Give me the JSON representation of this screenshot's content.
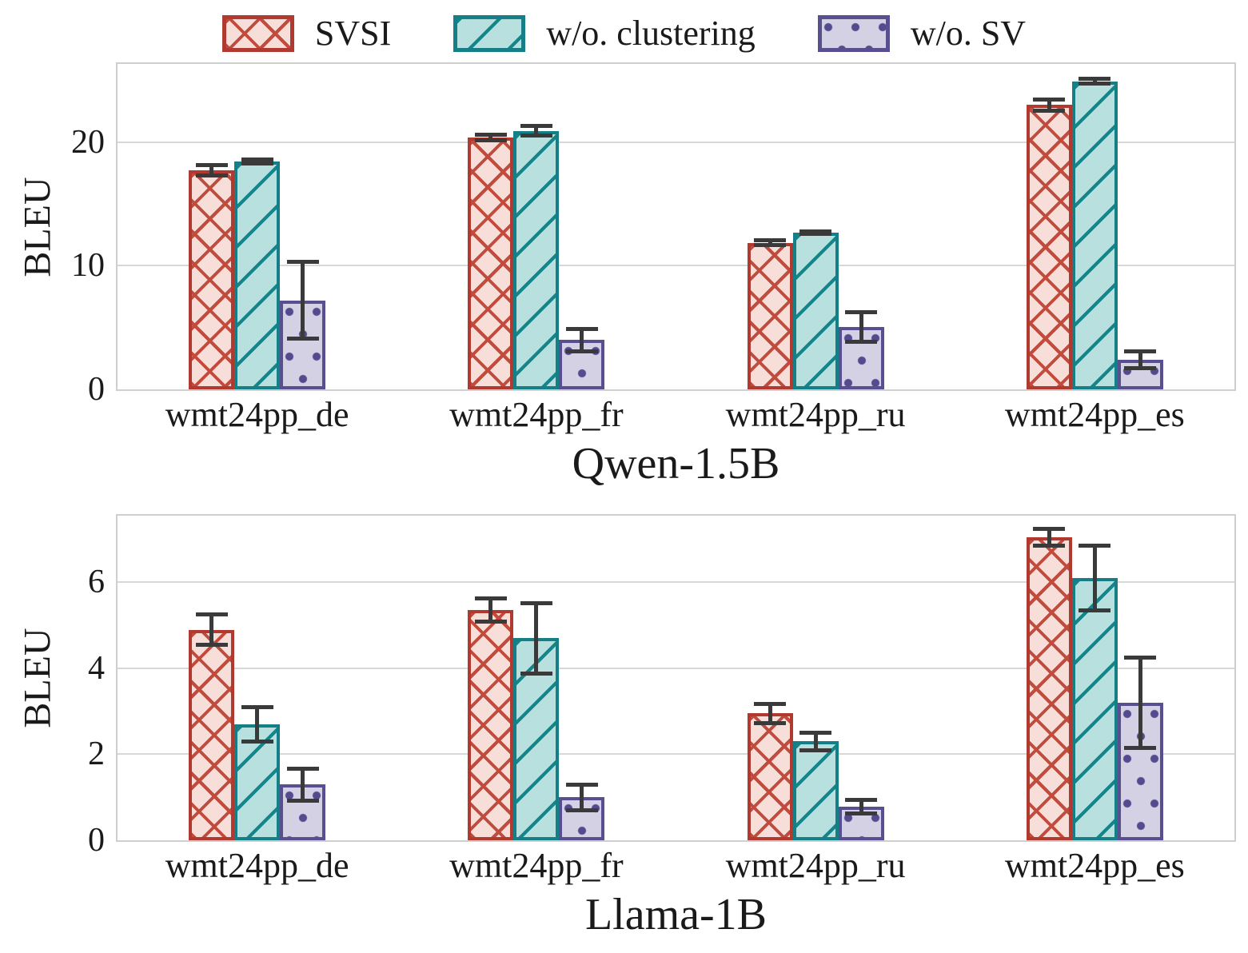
{
  "legend": {
    "items": [
      {
        "key": "svsi",
        "label": "SVSI"
      },
      {
        "key": "clustering",
        "label": "w/o. clustering"
      },
      {
        "key": "sv",
        "label": "w/o. SV"
      }
    ]
  },
  "colors": {
    "svsi": {
      "edge": "#b03a30",
      "hatch_line": "#c14b3d",
      "fill": "#f7ded8",
      "hatch": "x"
    },
    "clustering": {
      "edge": "#157f88",
      "hatch_line": "#15858c",
      "fill": "#b8e0de",
      "hatch": "/"
    },
    "sv": {
      "edge": "#584f90",
      "hatch_line": "#544b8e",
      "fill": "#d4d1e4",
      "hatch": "."
    },
    "errorbar": "#3a3a3a",
    "grid": "#d8d8d8",
    "spine": "#cfcfcf",
    "text": "#1a1a1a"
  },
  "chart_data": [
    {
      "type": "bar",
      "title": "Qwen-1.5B",
      "ylabel": "BLEU",
      "categories": [
        "wmt24pp_de",
        "wmt24pp_fr",
        "wmt24pp_ru",
        "wmt24pp_es"
      ],
      "yticks": [
        0,
        10,
        20
      ],
      "ylim": [
        0,
        26.3
      ],
      "grid": true,
      "legend_position": "above-figure",
      "series": [
        {
          "name": "SVSI",
          "key": "svsi",
          "values": [
            17.7,
            20.35,
            11.85,
            23.0
          ],
          "errors": [
            0.4,
            0.25,
            0.2,
            0.45
          ]
        },
        {
          "name": "w/o. clustering",
          "key": "clustering",
          "values": [
            18.4,
            20.9,
            12.65,
            24.9
          ],
          "errors": [
            0.15,
            0.4,
            0.1,
            0.2
          ]
        },
        {
          "name": "w/o. SV",
          "key": "sv",
          "values": [
            7.2,
            4.0,
            5.05,
            2.4
          ],
          "errors": [
            3.1,
            0.9,
            1.2,
            0.7
          ]
        }
      ]
    },
    {
      "type": "bar",
      "title": "Llama-1B",
      "ylabel": "BLEU",
      "categories": [
        "wmt24pp_de",
        "wmt24pp_fr",
        "wmt24pp_ru",
        "wmt24pp_es"
      ],
      "yticks": [
        0,
        2,
        4,
        6
      ],
      "ylim": [
        0,
        7.55
      ],
      "grid": true,
      "series": [
        {
          "name": "SVSI",
          "key": "svsi",
          "values": [
            4.9,
            5.35,
            2.95,
            7.05
          ],
          "errors": [
            0.35,
            0.27,
            0.22,
            0.2
          ]
        },
        {
          "name": "w/o. clustering",
          "key": "clustering",
          "values": [
            2.7,
            4.7,
            2.3,
            6.1
          ],
          "errors": [
            0.4,
            0.82,
            0.2,
            0.75
          ]
        },
        {
          "name": "w/o. SV",
          "key": "sv",
          "values": [
            1.3,
            1.0,
            0.78,
            3.2
          ],
          "errors": [
            0.37,
            0.3,
            0.16,
            1.05
          ]
        }
      ]
    }
  ]
}
